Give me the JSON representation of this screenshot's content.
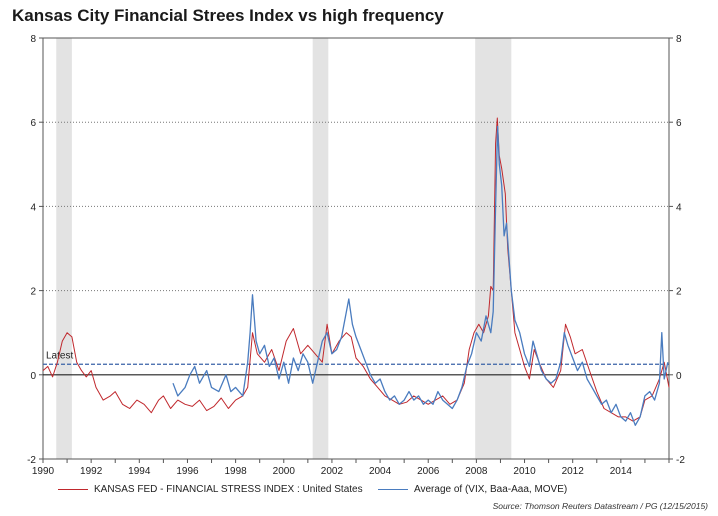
{
  "chart_data": {
    "type": "line",
    "title": "Kansas City Financial Strees Index vs high frequency",
    "xlabel": "",
    "ylabel": "",
    "xlim": [
      1990,
      2016
    ],
    "ylim": [
      -2,
      8
    ],
    "x_ticks": [
      "1990",
      "1992",
      "1994",
      "1996",
      "1998",
      "2000",
      "2002",
      "2004",
      "2006",
      "2008",
      "2010",
      "2012",
      "2014"
    ],
    "y_ticks": [
      "-2",
      "0",
      "2",
      "4",
      "6",
      "8"
    ],
    "recessions": [
      [
        1990.55,
        1991.2
      ],
      [
        2001.2,
        2001.85
      ],
      [
        2007.95,
        2009.45
      ]
    ],
    "latest_label": "Latest",
    "latest_value": 0.25,
    "series": [
      {
        "name": "KANSAS FED - FINANCIAL STRESS INDEX : United States",
        "color": "#c0282d",
        "points": [
          [
            1990.0,
            0.1
          ],
          [
            1990.2,
            0.2
          ],
          [
            1990.4,
            -0.05
          ],
          [
            1990.6,
            0.3
          ],
          [
            1990.8,
            0.8
          ],
          [
            1991.0,
            1.0
          ],
          [
            1991.2,
            0.9
          ],
          [
            1991.4,
            0.3
          ],
          [
            1991.6,
            0.1
          ],
          [
            1991.8,
            -0.05
          ],
          [
            1992.0,
            0.1
          ],
          [
            1992.2,
            -0.3
          ],
          [
            1992.5,
            -0.6
          ],
          [
            1992.8,
            -0.5
          ],
          [
            1993.0,
            -0.4
          ],
          [
            1993.3,
            -0.7
          ],
          [
            1993.6,
            -0.8
          ],
          [
            1993.9,
            -0.6
          ],
          [
            1994.2,
            -0.7
          ],
          [
            1994.5,
            -0.9
          ],
          [
            1994.8,
            -0.6
          ],
          [
            1995.0,
            -0.5
          ],
          [
            1995.3,
            -0.8
          ],
          [
            1995.6,
            -0.6
          ],
          [
            1995.9,
            -0.7
          ],
          [
            1996.2,
            -0.75
          ],
          [
            1996.5,
            -0.6
          ],
          [
            1996.8,
            -0.85
          ],
          [
            1997.1,
            -0.75
          ],
          [
            1997.4,
            -0.55
          ],
          [
            1997.7,
            -0.8
          ],
          [
            1998.0,
            -0.6
          ],
          [
            1998.3,
            -0.5
          ],
          [
            1998.5,
            -0.3
          ],
          [
            1998.7,
            1.0
          ],
          [
            1998.9,
            0.5
          ],
          [
            1999.2,
            0.3
          ],
          [
            1999.5,
            0.6
          ],
          [
            1999.8,
            0.1
          ],
          [
            2000.1,
            0.8
          ],
          [
            2000.4,
            1.1
          ],
          [
            2000.7,
            0.5
          ],
          [
            2001.0,
            0.7
          ],
          [
            2001.3,
            0.5
          ],
          [
            2001.6,
            0.3
          ],
          [
            2001.8,
            1.2
          ],
          [
            2002.0,
            0.5
          ],
          [
            2002.3,
            0.8
          ],
          [
            2002.6,
            1.0
          ],
          [
            2002.8,
            0.9
          ],
          [
            2003.0,
            0.4
          ],
          [
            2003.3,
            0.2
          ],
          [
            2003.6,
            -0.1
          ],
          [
            2003.9,
            -0.3
          ],
          [
            2004.2,
            -0.5
          ],
          [
            2004.5,
            -0.6
          ],
          [
            2004.8,
            -0.7
          ],
          [
            2005.1,
            -0.65
          ],
          [
            2005.4,
            -0.5
          ],
          [
            2005.7,
            -0.6
          ],
          [
            2006.0,
            -0.7
          ],
          [
            2006.3,
            -0.6
          ],
          [
            2006.6,
            -0.5
          ],
          [
            2006.9,
            -0.7
          ],
          [
            2007.2,
            -0.6
          ],
          [
            2007.5,
            -0.2
          ],
          [
            2007.7,
            0.6
          ],
          [
            2007.9,
            1.0
          ],
          [
            2008.1,
            1.2
          ],
          [
            2008.3,
            1.0
          ],
          [
            2008.5,
            1.4
          ],
          [
            2008.6,
            2.1
          ],
          [
            2008.7,
            2.0
          ],
          [
            2008.8,
            5.5
          ],
          [
            2008.87,
            6.1
          ],
          [
            2008.95,
            5.2
          ],
          [
            2009.05,
            4.9
          ],
          [
            2009.2,
            4.3
          ],
          [
            2009.3,
            3.0
          ],
          [
            2009.45,
            2.0
          ],
          [
            2009.6,
            1.0
          ],
          [
            2009.8,
            0.6
          ],
          [
            2010.0,
            0.2
          ],
          [
            2010.2,
            -0.1
          ],
          [
            2010.4,
            0.6
          ],
          [
            2010.6,
            0.3
          ],
          [
            2010.9,
            -0.1
          ],
          [
            2011.2,
            -0.3
          ],
          [
            2011.5,
            0.1
          ],
          [
            2011.7,
            1.2
          ],
          [
            2011.9,
            0.9
          ],
          [
            2012.1,
            0.5
          ],
          [
            2012.4,
            0.6
          ],
          [
            2012.7,
            0.1
          ],
          [
            2013.0,
            -0.4
          ],
          [
            2013.3,
            -0.8
          ],
          [
            2013.6,
            -0.9
          ],
          [
            2013.9,
            -1.0
          ],
          [
            2014.2,
            -1.0
          ],
          [
            2014.5,
            -1.1
          ],
          [
            2014.8,
            -1.0
          ],
          [
            2015.0,
            -0.6
          ],
          [
            2015.3,
            -0.5
          ],
          [
            2015.6,
            -0.1
          ],
          [
            2015.8,
            0.3
          ],
          [
            2016.0,
            -0.3
          ]
        ]
      },
      {
        "name": "Average of (VIX, Baa-Aaa, MOVE)",
        "color": "#4a7cbf",
        "points": [
          [
            1995.4,
            -0.2
          ],
          [
            1995.6,
            -0.5
          ],
          [
            1995.9,
            -0.3
          ],
          [
            1996.1,
            0.0
          ],
          [
            1996.3,
            0.2
          ],
          [
            1996.5,
            -0.2
          ],
          [
            1996.8,
            0.1
          ],
          [
            1997.0,
            -0.3
          ],
          [
            1997.3,
            -0.4
          ],
          [
            1997.6,
            0.0
          ],
          [
            1997.8,
            -0.4
          ],
          [
            1998.0,
            -0.3
          ],
          [
            1998.3,
            -0.5
          ],
          [
            1998.5,
            0.3
          ],
          [
            1998.6,
            1.0
          ],
          [
            1998.7,
            1.9
          ],
          [
            1998.85,
            0.8
          ],
          [
            1999.0,
            0.5
          ],
          [
            1999.2,
            0.7
          ],
          [
            1999.4,
            0.2
          ],
          [
            1999.6,
            0.4
          ],
          [
            1999.8,
            -0.1
          ],
          [
            2000.0,
            0.3
          ],
          [
            2000.2,
            -0.2
          ],
          [
            2000.4,
            0.4
          ],
          [
            2000.6,
            0.1
          ],
          [
            2000.8,
            0.5
          ],
          [
            2001.0,
            0.3
          ],
          [
            2001.2,
            -0.2
          ],
          [
            2001.4,
            0.3
          ],
          [
            2001.6,
            0.8
          ],
          [
            2001.8,
            1.0
          ],
          [
            2002.0,
            0.5
          ],
          [
            2002.2,
            0.6
          ],
          [
            2002.4,
            0.9
          ],
          [
            2002.6,
            1.5
          ],
          [
            2002.7,
            1.8
          ],
          [
            2002.85,
            1.2
          ],
          [
            2003.0,
            0.9
          ],
          [
            2003.2,
            0.6
          ],
          [
            2003.4,
            0.3
          ],
          [
            2003.6,
            0.0
          ],
          [
            2003.8,
            -0.2
          ],
          [
            2004.0,
            -0.1
          ],
          [
            2004.2,
            -0.4
          ],
          [
            2004.4,
            -0.6
          ],
          [
            2004.6,
            -0.5
          ],
          [
            2004.8,
            -0.7
          ],
          [
            2005.0,
            -0.6
          ],
          [
            2005.2,
            -0.4
          ],
          [
            2005.4,
            -0.6
          ],
          [
            2005.6,
            -0.5
          ],
          [
            2005.8,
            -0.7
          ],
          [
            2006.0,
            -0.6
          ],
          [
            2006.2,
            -0.7
          ],
          [
            2006.4,
            -0.4
          ],
          [
            2006.6,
            -0.6
          ],
          [
            2006.8,
            -0.7
          ],
          [
            2007.0,
            -0.8
          ],
          [
            2007.2,
            -0.6
          ],
          [
            2007.4,
            -0.3
          ],
          [
            2007.6,
            0.2
          ],
          [
            2007.8,
            0.5
          ],
          [
            2008.0,
            1.0
          ],
          [
            2008.2,
            0.8
          ],
          [
            2008.4,
            1.4
          ],
          [
            2008.6,
            1.0
          ],
          [
            2008.7,
            1.5
          ],
          [
            2008.8,
            4.0
          ],
          [
            2008.88,
            5.9
          ],
          [
            2008.95,
            5.0
          ],
          [
            2009.05,
            4.5
          ],
          [
            2009.15,
            3.3
          ],
          [
            2009.25,
            3.6
          ],
          [
            2009.35,
            2.8
          ],
          [
            2009.45,
            2.0
          ],
          [
            2009.6,
            1.3
          ],
          [
            2009.8,
            1.0
          ],
          [
            2010.0,
            0.5
          ],
          [
            2010.2,
            0.2
          ],
          [
            2010.35,
            0.8
          ],
          [
            2010.5,
            0.5
          ],
          [
            2010.7,
            0.1
          ],
          [
            2010.9,
            -0.1
          ],
          [
            2011.1,
            -0.2
          ],
          [
            2011.3,
            -0.1
          ],
          [
            2011.5,
            0.3
          ],
          [
            2011.65,
            1.0
          ],
          [
            2011.8,
            0.7
          ],
          [
            2012.0,
            0.4
          ],
          [
            2012.2,
            0.1
          ],
          [
            2012.4,
            0.3
          ],
          [
            2012.6,
            -0.1
          ],
          [
            2012.8,
            -0.3
          ],
          [
            2013.0,
            -0.5
          ],
          [
            2013.2,
            -0.7
          ],
          [
            2013.4,
            -0.6
          ],
          [
            2013.6,
            -0.9
          ],
          [
            2013.8,
            -0.7
          ],
          [
            2014.0,
            -1.0
          ],
          [
            2014.2,
            -1.1
          ],
          [
            2014.4,
            -0.9
          ],
          [
            2014.6,
            -1.2
          ],
          [
            2014.8,
            -1.0
          ],
          [
            2015.0,
            -0.5
          ],
          [
            2015.2,
            -0.4
          ],
          [
            2015.4,
            -0.6
          ],
          [
            2015.6,
            -0.2
          ],
          [
            2015.7,
            1.0
          ],
          [
            2015.8,
            -0.1
          ],
          [
            2015.95,
            0.3
          ]
        ]
      }
    ]
  },
  "source": "Source: Thomson Reuters Datastream / PG (12/15/2015)"
}
